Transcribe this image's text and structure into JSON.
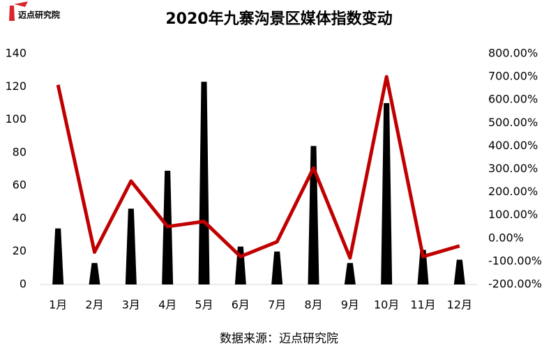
{
  "logo": "迈点研究院",
  "chart_data": {
    "type": "bar-line",
    "title": "2020年九寨沟景区媒体指数变动",
    "categories": [
      "1月",
      "2月",
      "3月",
      "4月",
      "5月",
      "6月",
      "7月",
      "8月",
      "9月",
      "10月",
      "11月",
      "12月"
    ],
    "series": [
      {
        "type": "bar",
        "color": "#000000",
        "values": [
          34,
          13,
          46,
          69,
          123,
          23,
          20,
          84,
          13,
          110,
          21,
          15
        ]
      },
      {
        "type": "line",
        "axis": "y2",
        "color": "#c00000",
        "values": [
          665,
          -60,
          248,
          51,
          73,
          -79,
          -15,
          305,
          -85,
          700,
          -79,
          -33
        ]
      }
    ],
    "ylim": [
      0,
      140
    ],
    "yticks": [
      0,
      20,
      40,
      60,
      80,
      100,
      120,
      140
    ],
    "y2lim": [
      -200,
      800
    ],
    "y2ticks": [
      {
        "value": -200,
        "label": "-200.00%"
      },
      {
        "value": -100,
        "label": "-100.00%"
      },
      {
        "value": 0,
        "label": "0.00%"
      },
      {
        "value": 100,
        "label": "100.00%"
      },
      {
        "value": 200,
        "label": "200.00%"
      },
      {
        "value": 300,
        "label": "300.00%"
      },
      {
        "value": 400,
        "label": "400.00%"
      },
      {
        "value": 500,
        "label": "500.00%"
      },
      {
        "value": 600,
        "label": "600.00%"
      },
      {
        "value": 700,
        "label": "700.00%"
      },
      {
        "value": 800,
        "label": "800.00%"
      }
    ],
    "source": "数据来源：迈点研究院"
  }
}
